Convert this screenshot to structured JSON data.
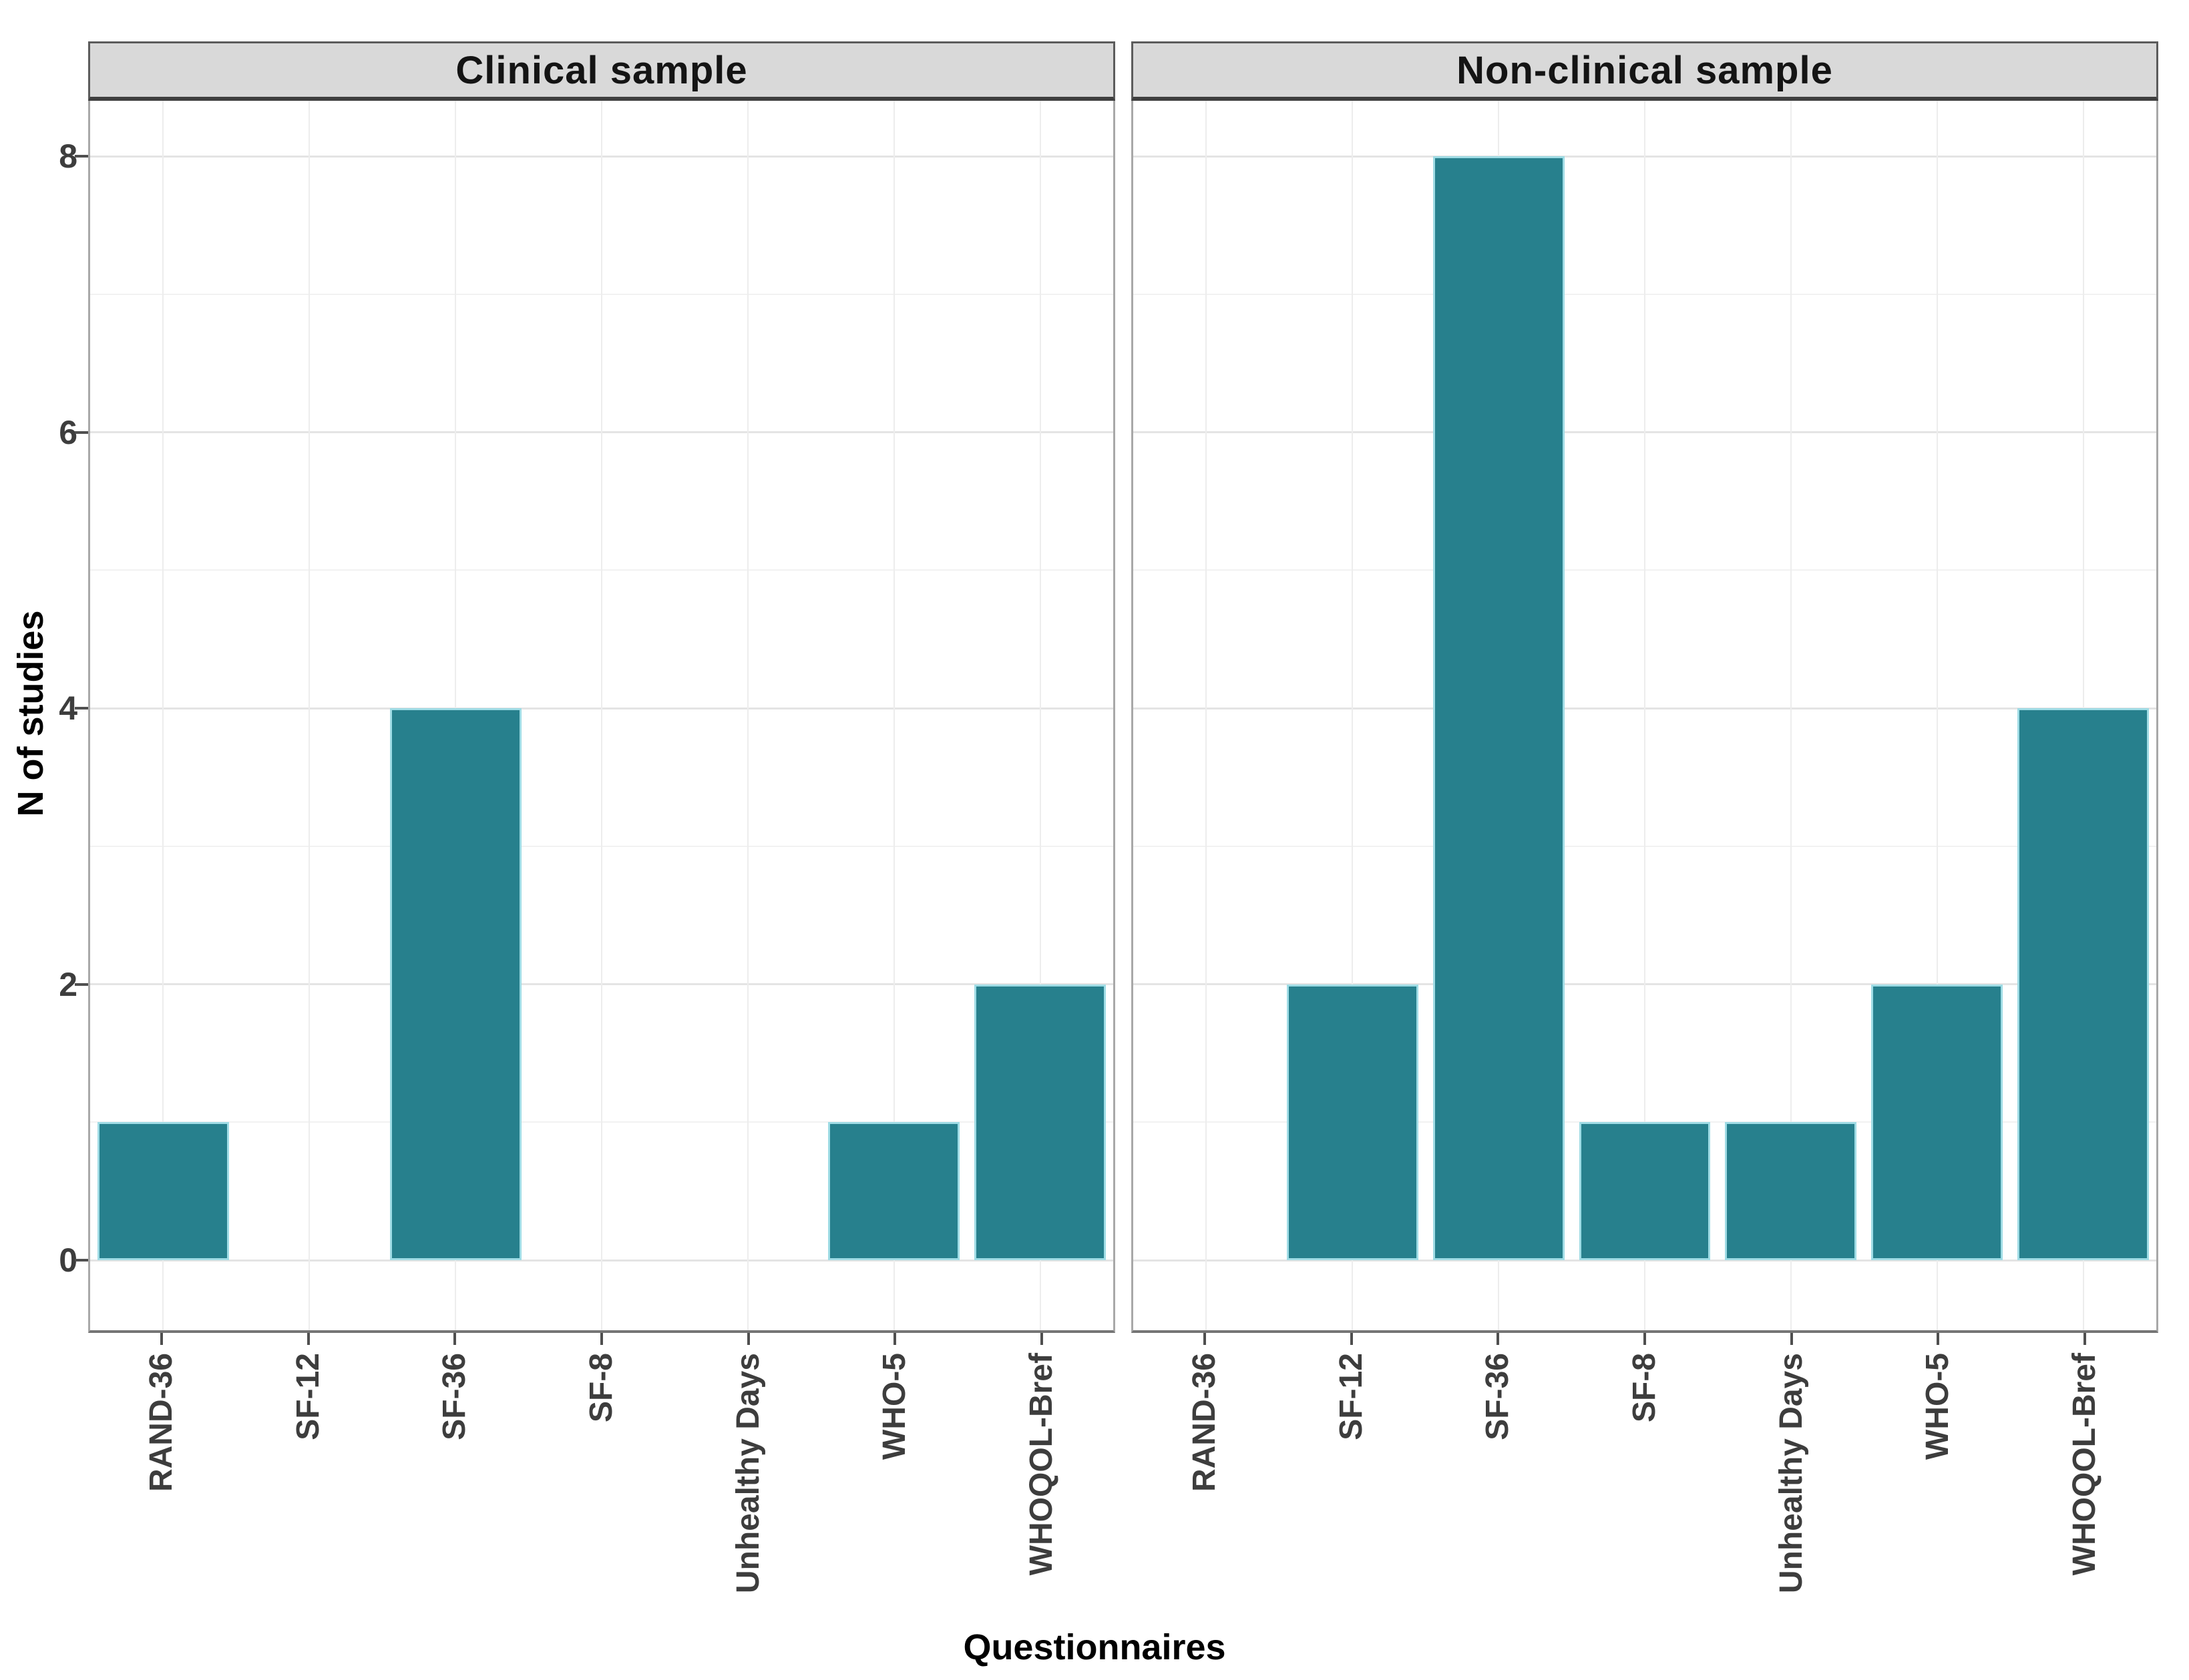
{
  "chart_data": {
    "type": "bar",
    "facets": [
      "Clinical sample",
      "Non-clinical sample"
    ],
    "categories": [
      "RAND-36",
      "SF-12",
      "SF-36",
      "SF-8",
      "Unhealthy Days",
      "WHO-5",
      "WHOQOL-Bref"
    ],
    "series": [
      {
        "name": "Clinical sample",
        "values": [
          1,
          0,
          4,
          0,
          0,
          1,
          2
        ]
      },
      {
        "name": "Non-clinical sample",
        "values": [
          0,
          2,
          8,
          1,
          1,
          2,
          4
        ]
      }
    ],
    "xlabel": "Questionnaires",
    "ylabel": "N of studies",
    "ylim": [
      0,
      8.4
    ],
    "yticks_major": [
      0,
      2,
      4,
      6,
      8
    ],
    "yticks_minor": [
      1,
      3,
      5,
      7
    ],
    "ytick_labels": [
      "0",
      "2",
      "4",
      "6",
      "8"
    ],
    "grid": "major+minor horizontal, major vertical per category",
    "legend": "none",
    "colors": {
      "bar_fill": "#27808d",
      "bar_outline": "#9fdce5",
      "strip_background": "#d9d9d9",
      "axis_text": "#3d3d3d",
      "gridline_major": "#e4e4e4",
      "gridline_minor": "#f2f2f2"
    }
  }
}
